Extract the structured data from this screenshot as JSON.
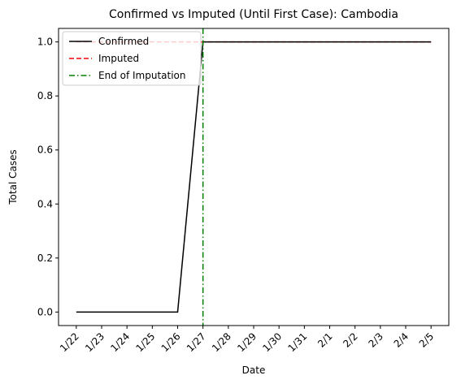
{
  "chart_data": {
    "type": "line",
    "title": "Confirmed vs Imputed (Until First Case): Cambodia",
    "xlabel": "Date",
    "ylabel": "Total Cases",
    "categories": [
      "1/22",
      "1/23",
      "1/24",
      "1/25",
      "1/26",
      "1/27",
      "1/28",
      "1/29",
      "1/30",
      "1/31",
      "2/1",
      "2/2",
      "2/3",
      "2/4",
      "2/5"
    ],
    "ylim": [
      -0.05,
      1.05
    ],
    "yticks": [
      "0.0",
      "0.2",
      "0.4",
      "0.6",
      "0.8",
      "1.0"
    ],
    "series": [
      {
        "name": "Confirmed",
        "color": "#000000",
        "style": "solid",
        "values": [
          0,
          0,
          0,
          0,
          0,
          1,
          1,
          1,
          1,
          1,
          1,
          1,
          1,
          1,
          1
        ]
      },
      {
        "name": "Imputed",
        "color": "#ff0000",
        "style": "dashed",
        "values": [
          1,
          1,
          1,
          1,
          1,
          1,
          1,
          1,
          1,
          1,
          1,
          1,
          1,
          1,
          1
        ]
      }
    ],
    "vline": {
      "name": "End of Imputation",
      "x": "1/27",
      "color": "#008000",
      "style": "dashdot"
    },
    "grid": false,
    "legend_position": "top-left"
  }
}
